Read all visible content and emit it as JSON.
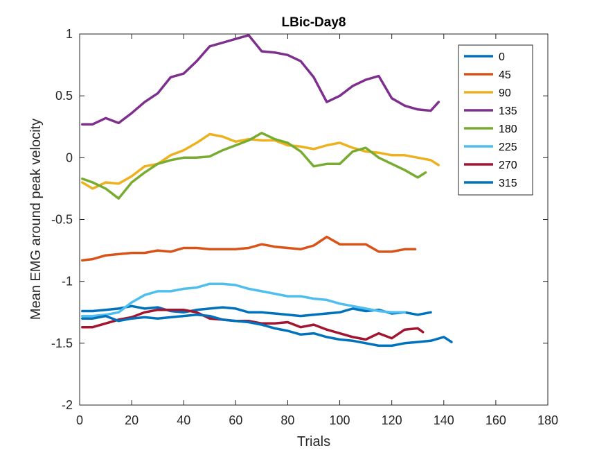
{
  "chart_data": {
    "type": "line",
    "title": "LBic-Day8",
    "xlabel": "Trials",
    "ylabel": "Mean EMG around peak velocity",
    "xlim": [
      0,
      180
    ],
    "ylim": [
      -2,
      1
    ],
    "xticks": [
      0,
      20,
      40,
      60,
      80,
      100,
      120,
      140,
      160,
      180
    ],
    "yticks": [
      -2,
      -1.5,
      -1,
      -0.5,
      0,
      0.5,
      1
    ],
    "xtick_labels": [
      "0",
      "20",
      "40",
      "60",
      "80",
      "100",
      "120",
      "140",
      "160",
      "180"
    ],
    "ytick_labels": [
      "-2",
      "-1.5",
      "-1",
      "-0.5",
      "0",
      "0.5",
      "1"
    ],
    "grid": false,
    "legend_position": "top-right",
    "series": [
      {
        "name": "0",
        "color": "#0072BD",
        "points": [
          [
            1,
            -1.24
          ],
          [
            5,
            -1.24
          ],
          [
            10,
            -1.23
          ],
          [
            15,
            -1.22
          ],
          [
            20,
            -1.2
          ],
          [
            25,
            -1.22
          ],
          [
            30,
            -1.21
          ],
          [
            35,
            -1.24
          ],
          [
            40,
            -1.25
          ],
          [
            45,
            -1.23
          ],
          [
            50,
            -1.22
          ],
          [
            55,
            -1.21
          ],
          [
            60,
            -1.22
          ],
          [
            65,
            -1.25
          ],
          [
            70,
            -1.25
          ],
          [
            75,
            -1.26
          ],
          [
            80,
            -1.27
          ],
          [
            85,
            -1.28
          ],
          [
            90,
            -1.27
          ],
          [
            95,
            -1.26
          ],
          [
            100,
            -1.25
          ],
          [
            105,
            -1.22
          ],
          [
            110,
            -1.24
          ],
          [
            115,
            -1.23
          ],
          [
            120,
            -1.26
          ],
          [
            125,
            -1.25
          ],
          [
            130,
            -1.27
          ],
          [
            135,
            -1.25
          ]
        ]
      },
      {
        "name": "45",
        "color": "#D95319",
        "points": [
          [
            1,
            -0.83
          ],
          [
            5,
            -0.82
          ],
          [
            10,
            -0.79
          ],
          [
            15,
            -0.78
          ],
          [
            20,
            -0.77
          ],
          [
            25,
            -0.77
          ],
          [
            30,
            -0.75
          ],
          [
            35,
            -0.76
          ],
          [
            40,
            -0.73
          ],
          [
            45,
            -0.73
          ],
          [
            50,
            -0.74
          ],
          [
            55,
            -0.74
          ],
          [
            60,
            -0.74
          ],
          [
            65,
            -0.73
          ],
          [
            70,
            -0.7
          ],
          [
            75,
            -0.72
          ],
          [
            80,
            -0.73
          ],
          [
            85,
            -0.74
          ],
          [
            90,
            -0.71
          ],
          [
            95,
            -0.64
          ],
          [
            100,
            -0.7
          ],
          [
            105,
            -0.7
          ],
          [
            110,
            -0.7
          ],
          [
            115,
            -0.76
          ],
          [
            120,
            -0.76
          ],
          [
            125,
            -0.74
          ],
          [
            129,
            -0.74
          ]
        ]
      },
      {
        "name": "90",
        "color": "#EDB120",
        "points": [
          [
            1,
            -0.2
          ],
          [
            5,
            -0.25
          ],
          [
            10,
            -0.2
          ],
          [
            15,
            -0.21
          ],
          [
            20,
            -0.15
          ],
          [
            25,
            -0.07
          ],
          [
            30,
            -0.05
          ],
          [
            35,
            0.02
          ],
          [
            40,
            0.06
          ],
          [
            45,
            0.12
          ],
          [
            50,
            0.19
          ],
          [
            55,
            0.17
          ],
          [
            60,
            0.13
          ],
          [
            65,
            0.15
          ],
          [
            70,
            0.14
          ],
          [
            75,
            0.14
          ],
          [
            80,
            0.1
          ],
          [
            85,
            0.09
          ],
          [
            90,
            0.07
          ],
          [
            95,
            0.1
          ],
          [
            100,
            0.12
          ],
          [
            105,
            0.08
          ],
          [
            110,
            0.05
          ],
          [
            115,
            0.04
          ],
          [
            120,
            0.02
          ],
          [
            125,
            0.02
          ],
          [
            130,
            0.0
          ],
          [
            135,
            -0.02
          ],
          [
            138,
            -0.06
          ]
        ]
      },
      {
        "name": "135",
        "color": "#7E2F8E",
        "points": [
          [
            1,
            0.27
          ],
          [
            5,
            0.27
          ],
          [
            10,
            0.32
          ],
          [
            15,
            0.28
          ],
          [
            20,
            0.36
          ],
          [
            25,
            0.45
          ],
          [
            30,
            0.52
          ],
          [
            35,
            0.65
          ],
          [
            40,
            0.68
          ],
          [
            45,
            0.78
          ],
          [
            50,
            0.9
          ],
          [
            55,
            0.93
          ],
          [
            60,
            0.96
          ],
          [
            65,
            0.99
          ],
          [
            70,
            0.86
          ],
          [
            75,
            0.85
          ],
          [
            80,
            0.83
          ],
          [
            85,
            0.78
          ],
          [
            90,
            0.65
          ],
          [
            95,
            0.45
          ],
          [
            100,
            0.5
          ],
          [
            105,
            0.58
          ],
          [
            110,
            0.63
          ],
          [
            115,
            0.66
          ],
          [
            120,
            0.48
          ],
          [
            125,
            0.42
          ],
          [
            130,
            0.39
          ],
          [
            135,
            0.38
          ],
          [
            138,
            0.45
          ]
        ]
      },
      {
        "name": "180",
        "color": "#77AC30",
        "points": [
          [
            1,
            -0.17
          ],
          [
            5,
            -0.2
          ],
          [
            10,
            -0.25
          ],
          [
            15,
            -0.33
          ],
          [
            20,
            -0.2
          ],
          [
            25,
            -0.12
          ],
          [
            30,
            -0.05
          ],
          [
            35,
            -0.02
          ],
          [
            40,
            0.0
          ],
          [
            45,
            0.0
          ],
          [
            50,
            0.01
          ],
          [
            55,
            0.06
          ],
          [
            60,
            0.1
          ],
          [
            65,
            0.14
          ],
          [
            70,
            0.2
          ],
          [
            75,
            0.15
          ],
          [
            80,
            0.12
          ],
          [
            85,
            0.05
          ],
          [
            90,
            -0.07
          ],
          [
            95,
            -0.05
          ],
          [
            100,
            -0.05
          ],
          [
            105,
            0.05
          ],
          [
            110,
            0.08
          ],
          [
            115,
            0.0
          ],
          [
            120,
            -0.05
          ],
          [
            125,
            -0.1
          ],
          [
            130,
            -0.16
          ],
          [
            133,
            -0.12
          ]
        ]
      },
      {
        "name": "225",
        "color": "#4DBEEE",
        "points": [
          [
            1,
            -1.28
          ],
          [
            5,
            -1.28
          ],
          [
            10,
            -1.27
          ],
          [
            15,
            -1.25
          ],
          [
            20,
            -1.17
          ],
          [
            25,
            -1.11
          ],
          [
            30,
            -1.08
          ],
          [
            35,
            -1.08
          ],
          [
            40,
            -1.06
          ],
          [
            45,
            -1.05
          ],
          [
            50,
            -1.02
          ],
          [
            55,
            -1.02
          ],
          [
            60,
            -1.03
          ],
          [
            65,
            -1.06
          ],
          [
            70,
            -1.08
          ],
          [
            75,
            -1.1
          ],
          [
            80,
            -1.12
          ],
          [
            85,
            -1.12
          ],
          [
            90,
            -1.14
          ],
          [
            95,
            -1.15
          ],
          [
            100,
            -1.18
          ],
          [
            105,
            -1.2
          ],
          [
            110,
            -1.22
          ],
          [
            115,
            -1.24
          ],
          [
            120,
            -1.25
          ],
          [
            125,
            -1.25
          ]
        ]
      },
      {
        "name": "270",
        "color": "#A2142F",
        "points": [
          [
            1,
            -1.37
          ],
          [
            5,
            -1.37
          ],
          [
            10,
            -1.34
          ],
          [
            15,
            -1.31
          ],
          [
            20,
            -1.29
          ],
          [
            25,
            -1.25
          ],
          [
            30,
            -1.23
          ],
          [
            35,
            -1.23
          ],
          [
            40,
            -1.23
          ],
          [
            45,
            -1.25
          ],
          [
            50,
            -1.3
          ],
          [
            55,
            -1.31
          ],
          [
            60,
            -1.32
          ],
          [
            65,
            -1.32
          ],
          [
            70,
            -1.34
          ],
          [
            75,
            -1.34
          ],
          [
            80,
            -1.33
          ],
          [
            85,
            -1.37
          ],
          [
            90,
            -1.35
          ],
          [
            95,
            -1.39
          ],
          [
            100,
            -1.42
          ],
          [
            105,
            -1.45
          ],
          [
            110,
            -1.47
          ],
          [
            115,
            -1.42
          ],
          [
            120,
            -1.46
          ],
          [
            125,
            -1.39
          ],
          [
            130,
            -1.38
          ],
          [
            132,
            -1.41
          ]
        ]
      },
      {
        "name": "315",
        "color": "#0072BD",
        "points": [
          [
            1,
            -1.3
          ],
          [
            5,
            -1.3
          ],
          [
            10,
            -1.28
          ],
          [
            15,
            -1.32
          ],
          [
            20,
            -1.3
          ],
          [
            25,
            -1.29
          ],
          [
            30,
            -1.3
          ],
          [
            35,
            -1.29
          ],
          [
            40,
            -1.28
          ],
          [
            45,
            -1.27
          ],
          [
            50,
            -1.28
          ],
          [
            55,
            -1.31
          ],
          [
            60,
            -1.32
          ],
          [
            65,
            -1.33
          ],
          [
            70,
            -1.35
          ],
          [
            75,
            -1.38
          ],
          [
            80,
            -1.4
          ],
          [
            85,
            -1.43
          ],
          [
            90,
            -1.42
          ],
          [
            95,
            -1.45
          ],
          [
            100,
            -1.47
          ],
          [
            105,
            -1.48
          ],
          [
            110,
            -1.5
          ],
          [
            115,
            -1.52
          ],
          [
            120,
            -1.52
          ],
          [
            125,
            -1.5
          ],
          [
            130,
            -1.49
          ],
          [
            135,
            -1.48
          ],
          [
            140,
            -1.45
          ],
          [
            143,
            -1.49
          ]
        ]
      }
    ]
  }
}
